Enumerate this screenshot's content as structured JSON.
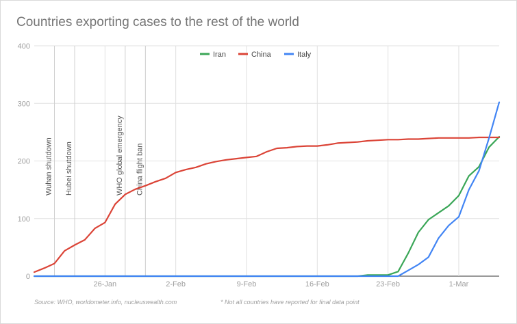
{
  "chart_data": {
    "type": "line",
    "title": "Countries exporting cases to the rest of the world",
    "source": "Source: WHO, worldometer.info, nucleuswealth.com",
    "note": "* Not all countries have reported for final data point",
    "xlabel": "",
    "ylabel": "",
    "ylim": [
      0,
      400
    ],
    "yticks": [
      0,
      100,
      200,
      300,
      400
    ],
    "xtick_labels": [
      {
        "day": 7,
        "label": "26-Jan"
      },
      {
        "day": 14,
        "label": "2-Feb"
      },
      {
        "day": 21,
        "label": "9-Feb"
      },
      {
        "day": 28,
        "label": "16-Feb"
      },
      {
        "day": 35,
        "label": "23-Feb"
      },
      {
        "day": 42,
        "label": "1-Mar"
      }
    ],
    "xlim": [
      0,
      46
    ],
    "x_start_date": "19-Jan",
    "legend_position": "top",
    "annotations": [
      {
        "day": 2,
        "label": "Wuhan shutdown"
      },
      {
        "day": 4,
        "label": "Hubei shutdown"
      },
      {
        "day": 9,
        "label": "WHO global emergency"
      },
      {
        "day": 11,
        "label": "China flight ban"
      }
    ],
    "series": [
      {
        "name": "Iran",
        "color": "#3aa657",
        "x": [
          0,
          1,
          2,
          3,
          4,
          5,
          6,
          7,
          8,
          9,
          10,
          11,
          12,
          13,
          14,
          15,
          16,
          17,
          18,
          19,
          20,
          21,
          22,
          23,
          24,
          25,
          26,
          27,
          28,
          29,
          30,
          31,
          32,
          33,
          34,
          35,
          36,
          37,
          38,
          39,
          40,
          41,
          42,
          43,
          44,
          45,
          46
        ],
        "values": [
          0,
          0,
          0,
          0,
          0,
          0,
          0,
          0,
          0,
          0,
          0,
          0,
          0,
          0,
          0,
          0,
          0,
          0,
          0,
          0,
          0,
          0,
          0,
          0,
          0,
          0,
          0,
          0,
          0,
          0,
          0,
          0,
          0,
          2,
          2,
          2,
          8,
          40,
          76,
          98,
          110,
          122,
          140,
          174,
          190,
          224,
          242
        ]
      },
      {
        "name": "China",
        "color": "#db4437",
        "x": [
          0,
          1,
          2,
          3,
          4,
          5,
          6,
          7,
          8,
          9,
          10,
          11,
          12,
          13,
          14,
          15,
          16,
          17,
          18,
          19,
          20,
          21,
          22,
          23,
          24,
          25,
          26,
          27,
          28,
          29,
          30,
          31,
          32,
          33,
          34,
          35,
          36,
          37,
          38,
          39,
          40,
          41,
          42,
          43,
          44,
          45,
          46
        ],
        "values": [
          7,
          14,
          22,
          44,
          54,
          63,
          83,
          93,
          125,
          142,
          151,
          157,
          164,
          170,
          180,
          185,
          189,
          195,
          199,
          202,
          204,
          206,
          208,
          216,
          222,
          223,
          225,
          226,
          226,
          228,
          231,
          232,
          233,
          235,
          236,
          237,
          237,
          238,
          238,
          239,
          240,
          240,
          240,
          240,
          241,
          241,
          241
        ]
      },
      {
        "name": "Italy",
        "color": "#4285f4",
        "x": [
          0,
          1,
          2,
          3,
          4,
          5,
          6,
          7,
          8,
          9,
          10,
          11,
          12,
          13,
          14,
          15,
          16,
          17,
          18,
          19,
          20,
          21,
          22,
          23,
          24,
          25,
          26,
          27,
          28,
          29,
          30,
          31,
          32,
          33,
          34,
          35,
          36,
          37,
          38,
          39,
          40,
          41,
          42,
          43,
          44,
          45,
          46
        ],
        "values": [
          0,
          0,
          0,
          0,
          0,
          0,
          0,
          0,
          0,
          0,
          0,
          0,
          0,
          0,
          0,
          0,
          0,
          0,
          0,
          0,
          0,
          0,
          0,
          0,
          0,
          0,
          0,
          0,
          0,
          0,
          0,
          0,
          0,
          0,
          0,
          0,
          0,
          10,
          20,
          33,
          66,
          88,
          103,
          150,
          183,
          240,
          302
        ]
      }
    ]
  }
}
